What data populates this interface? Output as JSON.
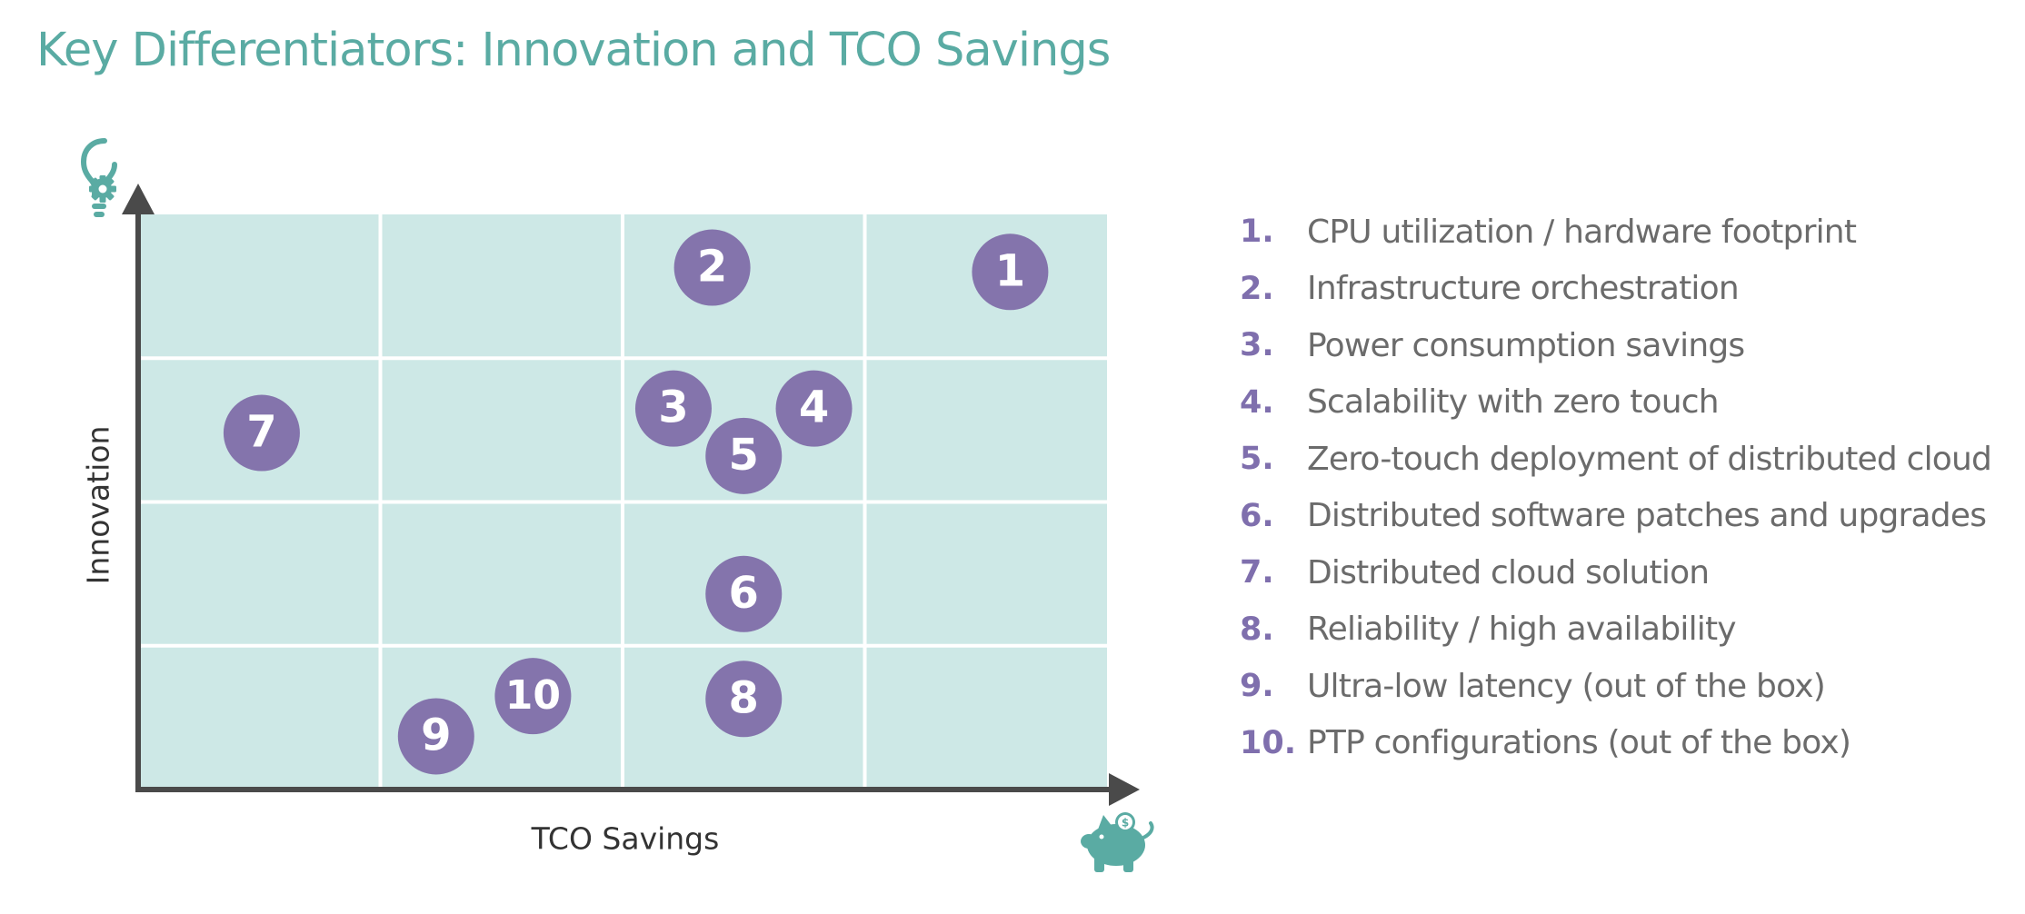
{
  "title": "Key Differentiators: Innovation and TCO Savings",
  "colors": {
    "title": "#5aaba3",
    "cell_fill": "#cde8e6",
    "bubble": "#8474ac",
    "axis": "#4a4a4a",
    "icon": "#5aaba3",
    "legend_number": "#7f6fad",
    "legend_text": "#6b6b6b"
  },
  "icons": {
    "y_axis": "lightbulb-gear-icon",
    "x_axis": "piggy-bank-icon"
  },
  "chart_data": {
    "type": "scatter",
    "xlabel": "TCO Savings",
    "ylabel": "Innovation",
    "x_range": [
      0,
      4
    ],
    "y_range": [
      0,
      4
    ],
    "grid": true,
    "grid_columns": 4,
    "grid_rows": 4,
    "legend_position": "right",
    "points": [
      {
        "label": "1",
        "x": 3.6,
        "y": 3.6
      },
      {
        "label": "2",
        "x": 2.37,
        "y": 3.63
      },
      {
        "label": "3",
        "x": 2.21,
        "y": 2.65
      },
      {
        "label": "4",
        "x": 2.79,
        "y": 2.65
      },
      {
        "label": "5",
        "x": 2.5,
        "y": 2.32
      },
      {
        "label": "6",
        "x": 2.5,
        "y": 1.36
      },
      {
        "label": "7",
        "x": 0.51,
        "y": 2.48
      },
      {
        "label": "8",
        "x": 2.5,
        "y": 0.63
      },
      {
        "label": "9",
        "x": 1.23,
        "y": 0.37
      },
      {
        "label": "10",
        "x": 1.63,
        "y": 0.65
      }
    ]
  },
  "legend": [
    {
      "number": "1.",
      "text": "CPU utilization / hardware footprint"
    },
    {
      "number": "2.",
      "text": "Infrastructure orchestration"
    },
    {
      "number": "3.",
      "text": "Power consumption savings"
    },
    {
      "number": "4.",
      "text": "Scalability with zero touch"
    },
    {
      "number": "5.",
      "text": "Zero-touch deployment of distributed cloud"
    },
    {
      "number": "6.",
      "text": "Distributed software patches and upgrades"
    },
    {
      "number": "7.",
      "text": "Distributed cloud solution"
    },
    {
      "number": "8.",
      "text": "Reliability / high availability"
    },
    {
      "number": "9.",
      "text": "Ultra-low latency (out of the box)"
    },
    {
      "number": "10.",
      "text": "PTP configurations (out of the box)"
    }
  ]
}
